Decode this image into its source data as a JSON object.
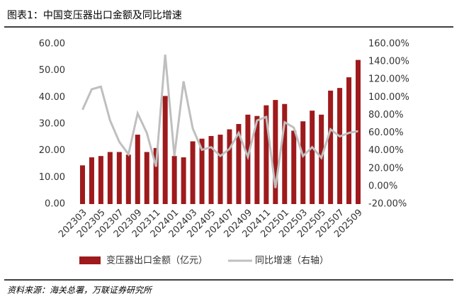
{
  "chart_data": {
    "type": "bar-line",
    "title": "图表1：中国变压器出口金额及同比增速",
    "source": "资料来源：海关总署，万联证券研究所",
    "categories": [
      "202303",
      null,
      "202305",
      null,
      "202307",
      null,
      "202309",
      null,
      "202311",
      null,
      "202401",
      null,
      "202403",
      null,
      "202405",
      null,
      "202407",
      null,
      "202409",
      null,
      "202411",
      null,
      "202501",
      null,
      "202503",
      null,
      "202505",
      null,
      "202507",
      null,
      "202509"
    ],
    "series": [
      {
        "name": "变压器出口金额（亿元）",
        "type": "bar",
        "color": "#9e1a1c",
        "values": [
          14.5,
          17.5,
          18,
          19.5,
          19.5,
          18.5,
          26,
          19.5,
          21,
          40.5,
          18,
          17.5,
          23.5,
          24.5,
          25.5,
          26,
          28,
          30,
          33.5,
          33,
          37,
          39,
          37.5,
          27.5,
          31,
          35,
          33.5,
          42.5,
          43.5,
          47.5,
          54
        ]
      },
      {
        "name": "同比增速（右轴）",
        "type": "line",
        "axis": "y2",
        "color": "#bfbfbf",
        "values": [
          86,
          109,
          112,
          74,
          50,
          36,
          82,
          60,
          22,
          148,
          34,
          118,
          65,
          41,
          44,
          34,
          42,
          60,
          33,
          74,
          78,
          -2,
          72,
          66,
          34,
          44,
          32,
          64,
          56,
          60,
          62
        ]
      }
    ],
    "ylim": [
      0,
      60
    ],
    "yticks": [
      {
        "value": 0,
        "label": "0.00"
      },
      {
        "value": 10,
        "label": "10.00"
      },
      {
        "value": 20,
        "label": "20.00"
      },
      {
        "value": 30,
        "label": "30.00"
      },
      {
        "value": 40,
        "label": "40.00"
      },
      {
        "value": 50,
        "label": "50.00"
      },
      {
        "value": 60,
        "label": "60.00"
      }
    ],
    "y2lim": [
      -20,
      160
    ],
    "y2ticks": [
      {
        "value": -20,
        "label": "-20.00%"
      },
      {
        "value": 0,
        "label": "0.00%"
      },
      {
        "value": 20,
        "label": "20.00%"
      },
      {
        "value": 40,
        "label": "40.00%"
      },
      {
        "value": 60,
        "label": "60.00%"
      },
      {
        "value": 80,
        "label": "80.00%"
      },
      {
        "value": 100,
        "label": "100.00%"
      },
      {
        "value": 120,
        "label": "120.00%"
      },
      {
        "value": 140,
        "label": "140.00%"
      },
      {
        "value": 160,
        "label": "160.00%"
      }
    ],
    "grid": false
  }
}
